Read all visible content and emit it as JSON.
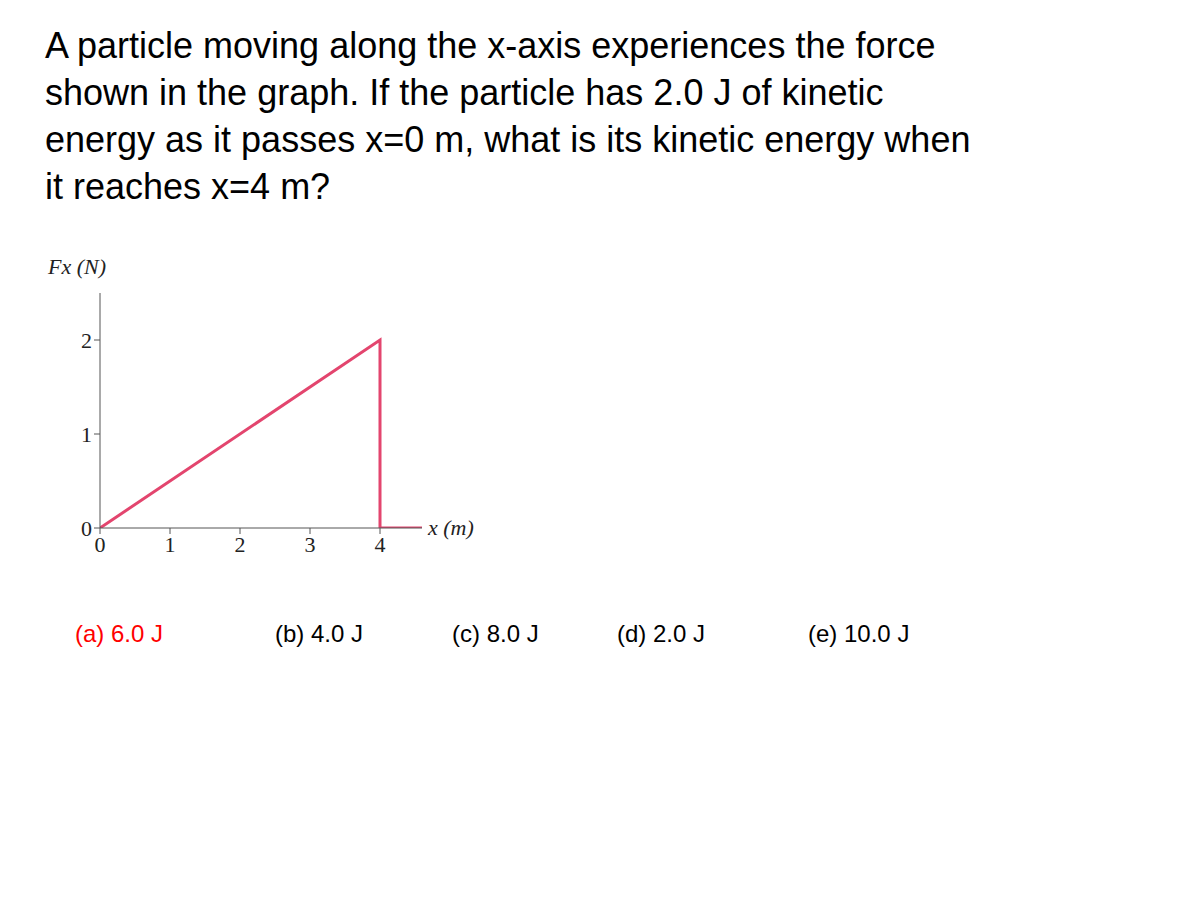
{
  "question_lines": [
    "A particle moving along the x-axis experiences the force",
    "shown in the graph. If the particle has 2.0 J of kinetic",
    "energy as it passes x=0 m, what is its kinetic energy when",
    "it reaches x=4 m?"
  ],
  "chart_data": {
    "type": "line",
    "x_label": "x (m)",
    "y_label": "Fx (N)",
    "x": [
      0,
      4,
      4,
      4.6
    ],
    "values": [
      0,
      2,
      0,
      0
    ],
    "color": "#e3456e",
    "xlim": [
      0,
      4.6
    ],
    "xticks": [
      0,
      1,
      2,
      3,
      4
    ],
    "ylim": [
      0,
      2.5
    ],
    "yticks": [
      0,
      1,
      2
    ],
    "grid": false
  },
  "options": [
    {
      "text": "(a) 6.0 J",
      "color": "#ff0000"
    },
    {
      "text": "(b) 4.0 J",
      "color": "#000000"
    },
    {
      "text": "(c) 8.0 J",
      "color": "#000000"
    },
    {
      "text": "(d) 2.0 J",
      "color": "#000000"
    },
    {
      "text": "(e) 10.0 J",
      "color": "#000000"
    }
  ]
}
